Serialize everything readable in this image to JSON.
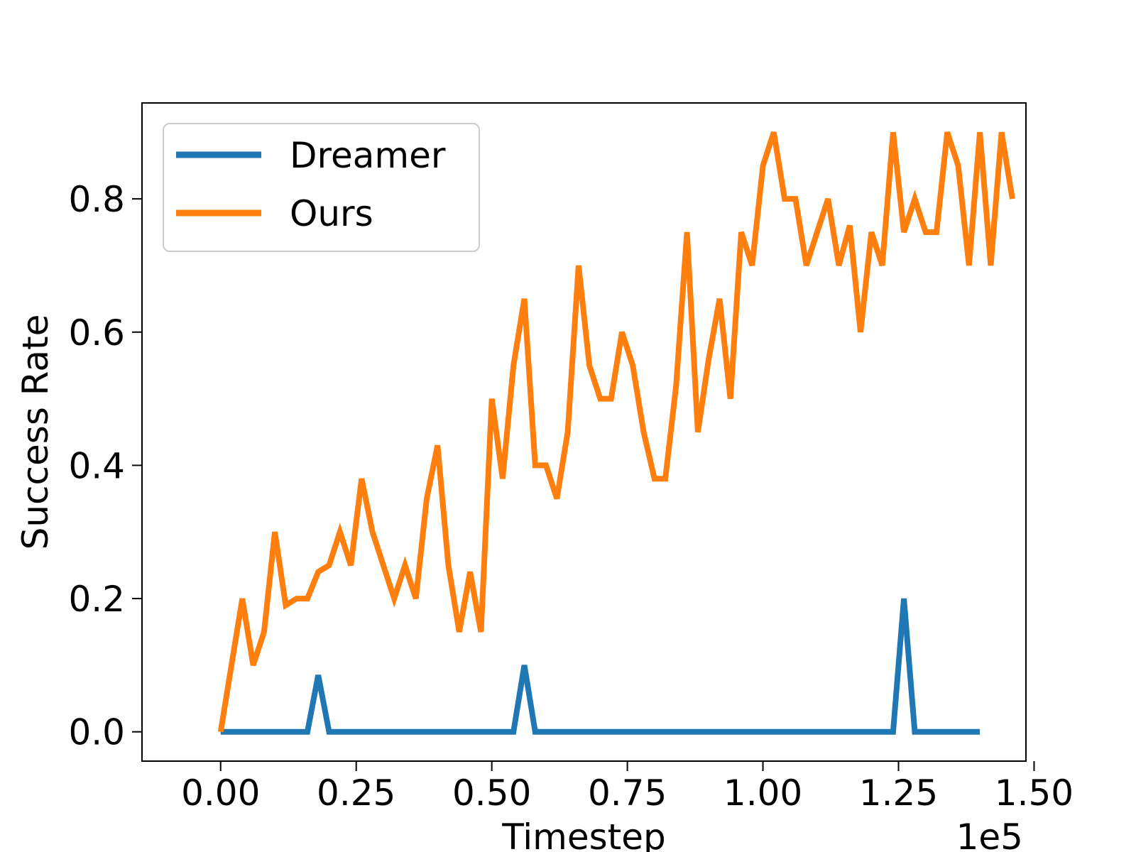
{
  "chart_data": {
    "type": "line",
    "title": "",
    "xlabel": "Timestep",
    "ylabel": "Success Rate",
    "x_offset_label": "1e5",
    "xlim": [
      -0.145,
      1.485
    ],
    "ylim": [
      -0.044,
      0.944
    ],
    "x_ticks": [
      0.0,
      0.25,
      0.5,
      0.75,
      1.0,
      1.25,
      1.5
    ],
    "x_tick_labels": [
      "0.00",
      "0.25",
      "0.50",
      "0.75",
      "1.00",
      "1.25",
      "1.50"
    ],
    "y_ticks": [
      0.0,
      0.2,
      0.4,
      0.6,
      0.8
    ],
    "y_tick_labels": [
      "0.0",
      "0.2",
      "0.4",
      "0.6",
      "0.8"
    ],
    "grid": false,
    "legend_position": "top-left",
    "series": [
      {
        "name": "Dreamer",
        "color": "#1f77b4",
        "x": [
          0.0,
          0.16,
          0.18,
          0.2,
          0.54,
          0.56,
          0.58,
          1.24,
          1.26,
          1.28,
          1.4
        ],
        "y": [
          0.0,
          0.0,
          0.085,
          0.0,
          0.0,
          0.1,
          0.0,
          0.0,
          0.2,
          0.0,
          0.0
        ]
      },
      {
        "name": "Ours",
        "color": "#ff7f0e",
        "x": [
          0.0,
          0.02,
          0.04,
          0.06,
          0.08,
          0.1,
          0.12,
          0.14,
          0.16,
          0.18,
          0.2,
          0.22,
          0.24,
          0.26,
          0.28,
          0.3,
          0.32,
          0.34,
          0.36,
          0.38,
          0.4,
          0.42,
          0.44,
          0.46,
          0.48,
          0.5,
          0.52,
          0.54,
          0.56,
          0.58,
          0.6,
          0.62,
          0.64,
          0.66,
          0.68,
          0.7,
          0.72,
          0.74,
          0.76,
          0.78,
          0.8,
          0.82,
          0.84,
          0.86,
          0.88,
          0.9,
          0.92,
          0.94,
          0.96,
          0.98,
          1.0,
          1.02,
          1.04,
          1.06,
          1.08,
          1.1,
          1.12,
          1.14,
          1.16,
          1.18,
          1.2,
          1.22,
          1.24,
          1.26,
          1.28,
          1.3,
          1.32,
          1.34,
          1.36,
          1.38,
          1.4,
          1.42,
          1.44,
          1.46
        ],
        "y": [
          0.0,
          0.1,
          0.2,
          0.1,
          0.15,
          0.3,
          0.19,
          0.2,
          0.2,
          0.24,
          0.25,
          0.3,
          0.25,
          0.38,
          0.3,
          0.25,
          0.2,
          0.25,
          0.2,
          0.35,
          0.43,
          0.25,
          0.15,
          0.24,
          0.15,
          0.5,
          0.38,
          0.55,
          0.65,
          0.4,
          0.4,
          0.35,
          0.45,
          0.7,
          0.55,
          0.5,
          0.5,
          0.6,
          0.55,
          0.45,
          0.38,
          0.38,
          0.52,
          0.75,
          0.45,
          0.56,
          0.65,
          0.5,
          0.75,
          0.7,
          0.85,
          0.9,
          0.8,
          0.8,
          0.7,
          0.75,
          0.8,
          0.7,
          0.76,
          0.6,
          0.75,
          0.7,
          0.9,
          0.75,
          0.8,
          0.75,
          0.75,
          0.9,
          0.85,
          0.7,
          0.9,
          0.7,
          0.9,
          0.8
        ]
      }
    ]
  }
}
